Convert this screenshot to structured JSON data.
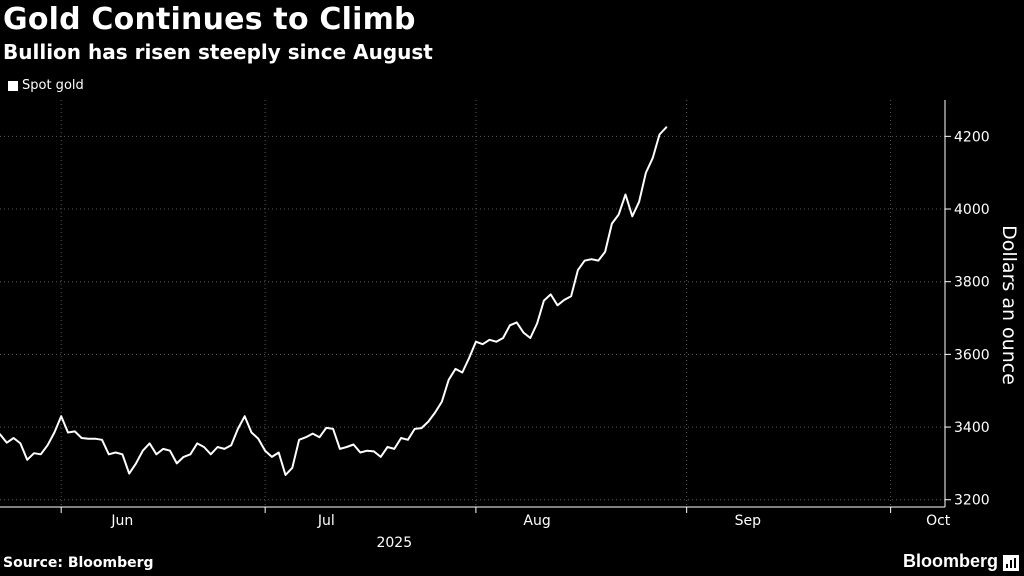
{
  "chart_data": {
    "type": "line",
    "title": "Gold Continues to Climb",
    "subtitle": "Bullion has risen steeply since August",
    "legend": [
      "Spot gold"
    ],
    "legend_position": "top-left",
    "ylabel": "Dollars an ounce",
    "year_label": "2025",
    "ylim": [
      3180,
      4300
    ],
    "yticks": [
      3200,
      3400,
      3600,
      3800,
      4000,
      4200
    ],
    "xlim": [
      "2025-05-23",
      "2025-10-09"
    ],
    "month_ticks": [
      {
        "label": "Jun",
        "date": "2025-06-10"
      },
      {
        "label": "Jul",
        "date": "2025-07-10"
      },
      {
        "label": "Aug",
        "date": "2025-08-10"
      },
      {
        "label": "Sep",
        "date": "2025-09-10"
      },
      {
        "label": "Oct",
        "date": "2025-10-08"
      }
    ],
    "grid_dates": [
      "2025-06-01",
      "2025-07-01",
      "2025-08-01",
      "2025-09-01",
      "2025-10-01"
    ],
    "grid": true,
    "series": [
      {
        "name": "Spot gold",
        "points": [
          [
            "2025-05-23",
            3380
          ],
          [
            "2025-05-24",
            3357
          ],
          [
            "2025-05-25",
            3370
          ],
          [
            "2025-05-26",
            3355
          ],
          [
            "2025-05-27",
            3310
          ],
          [
            "2025-05-28",
            3328
          ],
          [
            "2025-05-29",
            3325
          ],
          [
            "2025-05-30",
            3350
          ],
          [
            "2025-05-31",
            3385
          ],
          [
            "2025-06-01",
            3430
          ],
          [
            "2025-06-02",
            3385
          ],
          [
            "2025-06-03",
            3388
          ],
          [
            "2025-06-04",
            3370
          ],
          [
            "2025-06-05",
            3368
          ],
          [
            "2025-06-06",
            3368
          ],
          [
            "2025-06-07",
            3365
          ],
          [
            "2025-06-08",
            3325
          ],
          [
            "2025-06-09",
            3330
          ],
          [
            "2025-06-10",
            3325
          ],
          [
            "2025-06-11",
            3272
          ],
          [
            "2025-06-12",
            3300
          ],
          [
            "2025-06-13",
            3335
          ],
          [
            "2025-06-14",
            3355
          ],
          [
            "2025-06-15",
            3325
          ],
          [
            "2025-06-16",
            3340
          ],
          [
            "2025-06-17",
            3335
          ],
          [
            "2025-06-18",
            3300
          ],
          [
            "2025-06-19",
            3318
          ],
          [
            "2025-06-20",
            3325
          ],
          [
            "2025-06-21",
            3355
          ],
          [
            "2025-06-22",
            3345
          ],
          [
            "2025-06-23",
            3325
          ],
          [
            "2025-06-24",
            3345
          ],
          [
            "2025-06-25",
            3340
          ],
          [
            "2025-06-26",
            3350
          ],
          [
            "2025-06-27",
            3395
          ],
          [
            "2025-06-28",
            3430
          ],
          [
            "2025-06-29",
            3385
          ],
          [
            "2025-06-30",
            3368
          ],
          [
            "2025-07-01",
            3335
          ],
          [
            "2025-07-02",
            3318
          ],
          [
            "2025-07-03",
            3330
          ],
          [
            "2025-07-04",
            3268
          ],
          [
            "2025-07-05",
            3288
          ],
          [
            "2025-07-06",
            3365
          ],
          [
            "2025-07-07",
            3372
          ],
          [
            "2025-07-08",
            3382
          ],
          [
            "2025-07-09",
            3372
          ],
          [
            "2025-07-10",
            3398
          ],
          [
            "2025-07-11",
            3395
          ],
          [
            "2025-07-12",
            3340
          ],
          [
            "2025-07-13",
            3345
          ],
          [
            "2025-07-14",
            3352
          ],
          [
            "2025-07-15",
            3330
          ],
          [
            "2025-07-16",
            3335
          ],
          [
            "2025-07-17",
            3333
          ],
          [
            "2025-07-18",
            3318
          ],
          [
            "2025-07-19",
            3345
          ],
          [
            "2025-07-20",
            3340
          ],
          [
            "2025-07-21",
            3370
          ],
          [
            "2025-07-22",
            3365
          ],
          [
            "2025-07-23",
            3395
          ],
          [
            "2025-07-24",
            3397
          ],
          [
            "2025-07-25",
            3415
          ],
          [
            "2025-07-26",
            3440
          ],
          [
            "2025-07-27",
            3470
          ],
          [
            "2025-07-28",
            3530
          ],
          [
            "2025-07-29",
            3560
          ],
          [
            "2025-07-30",
            3550
          ],
          [
            "2025-07-31",
            3590
          ],
          [
            "2025-08-01",
            3635
          ],
          [
            "2025-08-02",
            3628
          ],
          [
            "2025-08-03",
            3640
          ],
          [
            "2025-08-04",
            3635
          ],
          [
            "2025-08-05",
            3645
          ],
          [
            "2025-08-06",
            3680
          ],
          [
            "2025-08-07",
            3688
          ],
          [
            "2025-08-08",
            3660
          ],
          [
            "2025-08-09",
            3645
          ],
          [
            "2025-08-10",
            3685
          ],
          [
            "2025-08-11",
            3748
          ],
          [
            "2025-08-12",
            3765
          ],
          [
            "2025-08-13",
            3735
          ],
          [
            "2025-08-14",
            3750
          ],
          [
            "2025-08-15",
            3760
          ],
          [
            "2025-08-16",
            3832
          ],
          [
            "2025-08-17",
            3858
          ],
          [
            "2025-08-18",
            3862
          ],
          [
            "2025-08-19",
            3858
          ],
          [
            "2025-08-20",
            3882
          ],
          [
            "2025-08-21",
            3960
          ],
          [
            "2025-08-22",
            3985
          ],
          [
            "2025-08-23",
            4040
          ],
          [
            "2025-08-24",
            3980
          ],
          [
            "2025-08-25",
            4020
          ],
          [
            "2025-08-26",
            4100
          ],
          [
            "2025-08-27",
            4140
          ],
          [
            "2025-08-28",
            4205
          ],
          [
            "2025-08-29",
            4225
          ]
        ]
      }
    ]
  },
  "footer": {
    "source": "Source: Bloomberg",
    "brand": "Bloomberg"
  },
  "colors": {
    "background": "#000000",
    "line": "#ffffff",
    "grid": "#5a5a5a"
  }
}
